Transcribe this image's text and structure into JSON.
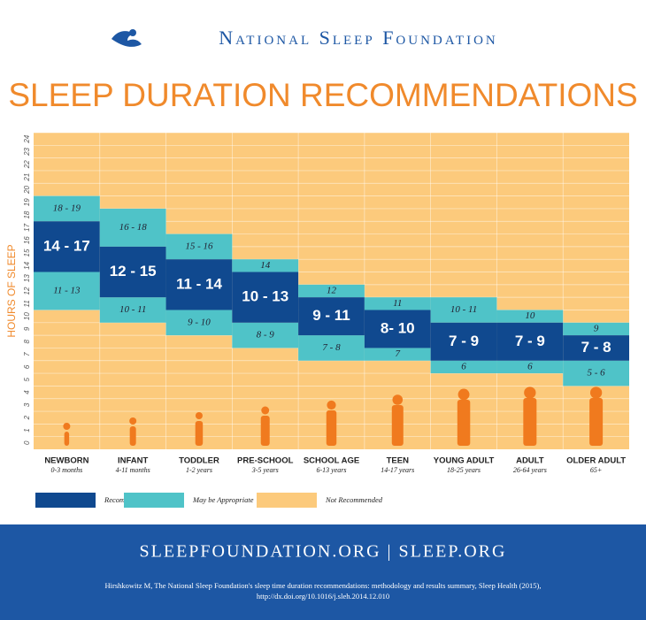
{
  "header": {
    "organization": "National Sleep Foundation"
  },
  "chart_data": {
    "type": "range",
    "title": "SLEEP DURATION RECOMMENDATIONS",
    "y_label": "HOURS OF SLEEP",
    "ylim": [
      0,
      24
    ],
    "yticks": [
      0,
      1,
      2,
      3,
      4,
      5,
      6,
      7,
      8,
      9,
      10,
      11,
      12,
      13,
      14,
      15,
      16,
      17,
      18,
      19,
      20,
      21,
      22,
      23,
      24
    ],
    "grid": true,
    "categories": [
      "NEWBORN",
      "INFANT",
      "TODDLER",
      "PRE-SCHOOL",
      "SCHOOL AGE",
      "TEEN",
      "YOUNG ADULT",
      "ADULT",
      "OLDER ADULT"
    ],
    "category_sublabels": [
      "0-3 months",
      "4-11 months",
      "1-2 years",
      "3-5 years",
      "6-13 years",
      "14-17 years",
      "18-25 years",
      "26-64 years",
      "65+"
    ],
    "series": [
      {
        "name": "Recommended",
        "color": "#10498f",
        "values": [
          [
            14,
            17
          ],
          [
            12,
            15
          ],
          [
            11,
            14
          ],
          [
            10,
            13
          ],
          [
            9,
            11
          ],
          [
            8,
            10
          ],
          [
            7,
            9
          ],
          [
            7,
            9
          ],
          [
            7,
            8
          ]
        ],
        "value_labels": [
          "14 - 17",
          "12 - 15",
          "11 - 14",
          "10 - 13",
          "9 - 11",
          "8- 10",
          "7 - 9",
          "7 - 9",
          "7 - 8"
        ]
      },
      {
        "name": "May be Appropriate",
        "color": "#4fc3c8",
        "values": [
          [
            [
              18,
              19
            ],
            [
              11,
              13
            ]
          ],
          [
            [
              16,
              18
            ],
            [
              10,
              11
            ]
          ],
          [
            [
              15,
              16
            ],
            [
              9,
              10
            ]
          ],
          [
            [
              14,
              14
            ],
            [
              8,
              9
            ]
          ],
          [
            [
              12,
              12
            ],
            [
              7,
              8
            ]
          ],
          [
            [
              11,
              11
            ],
            [
              7,
              7
            ]
          ],
          [
            [
              10,
              11
            ],
            [
              6,
              6
            ]
          ],
          [
            [
              10,
              10
            ],
            [
              6,
              6
            ]
          ],
          [
            [
              9,
              9
            ],
            [
              5,
              6
            ]
          ]
        ],
        "value_labels": [
          [
            "18 - 19",
            "11 - 13"
          ],
          [
            "16 - 18",
            "10 - 11"
          ],
          [
            "15 - 16",
            "9 - 10"
          ],
          [
            "14",
            "8 - 9"
          ],
          [
            "12",
            "7 - 8"
          ],
          [
            "11",
            "7"
          ],
          [
            "10 - 11",
            "6"
          ],
          [
            "10",
            "6"
          ],
          [
            "9",
            "5 - 6"
          ]
        ]
      },
      {
        "name": "Not Recommended",
        "color": "#fcca7c"
      }
    ]
  },
  "footer": {
    "links": "SLEEPFOUNDATION.ORG | SLEEP.ORG",
    "citation": [
      "Hirshkowitz M, The National Sleep Foundation's sleep time duration recommendations: methodology and results summary, Sleep Health (2015),",
      "http://dx.doi.org/10.1016/j.sleh.2014.12.010"
    ]
  }
}
